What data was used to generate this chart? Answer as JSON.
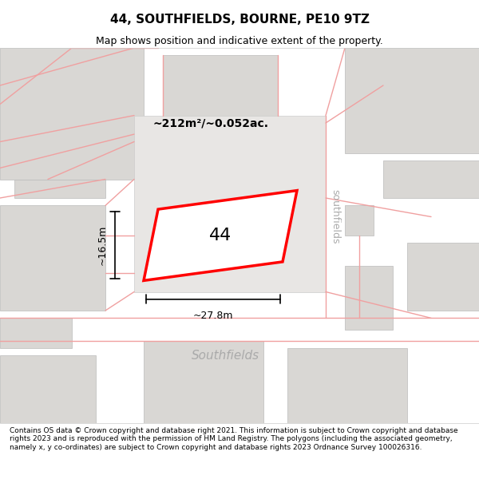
{
  "title": "44, SOUTHFIELDS, BOURNE, PE10 9TZ",
  "subtitle": "Map shows position and indicative extent of the property.",
  "footer": "Contains OS data © Crown copyright and database right 2021. This information is subject to Crown copyright and database rights 2023 and is reproduced with the permission of HM Land Registry. The polygons (including the associated geometry, namely x, y co-ordinates) are subject to Crown copyright and database rights 2023 Ordnance Survey 100026316.",
  "area_label": "~212m²/~0.052ac.",
  "width_label": "~27.8m",
  "height_label": "~16.5m",
  "number_label": "44",
  "bg_color": "#f0efee",
  "map_bg": "#f5f4f2",
  "road_fill": "#e8e6e3",
  "building_fill": "#d9d7d4",
  "plot_outline_color": "#ff0000",
  "plot_fill_color": "#ffffff",
  "dim_line_color": "#000000",
  "road_label_color": "#aaaaaa",
  "street_label_southfields_v": "southfields",
  "street_label_southfields_h": "Southfields"
}
